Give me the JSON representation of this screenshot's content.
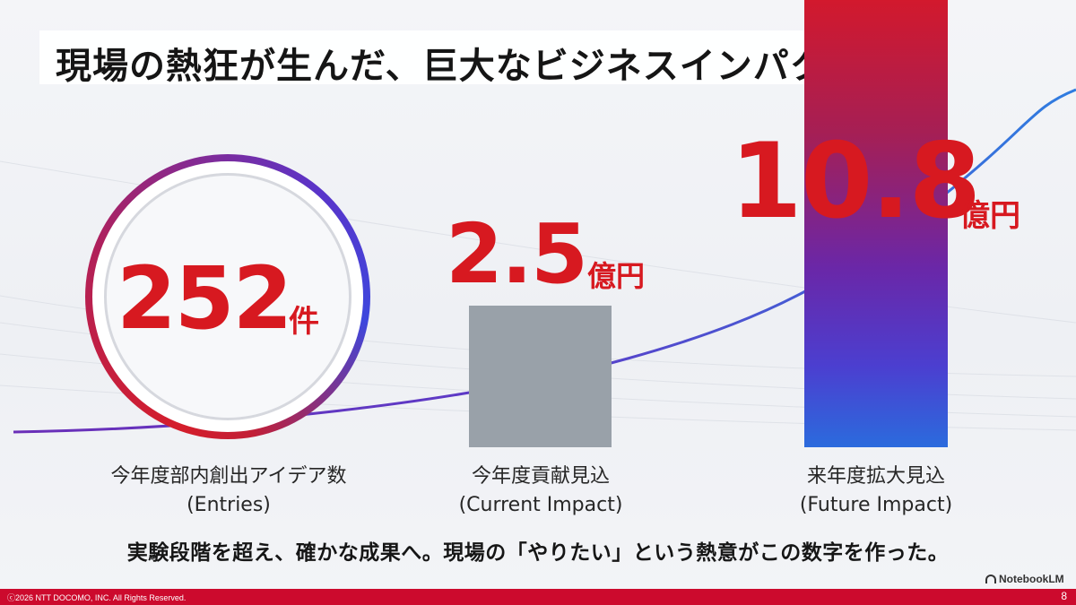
{
  "slide": {
    "title": "現場の熱狂が生んだ、巨大なビジネスインパクト",
    "message": "実験段階を超え、確かな成果へ。現場の「やりたい」という熱意がこの数字を作った。"
  },
  "metrics": {
    "entries": {
      "value": "252",
      "unit": "件",
      "label": "今年度部内創出アイデア数",
      "sublabel": "(Entries)"
    },
    "current": {
      "value": "2.5",
      "unit": "億円",
      "label": "今年度貢献見込",
      "sublabel": "(Current Impact)",
      "amount": 2.5
    },
    "future": {
      "value": "10.8",
      "unit": "億円",
      "label": "来年度拡大見込",
      "sublabel": "(Future Impact)",
      "amount": 10.8
    }
  },
  "colors": {
    "accent_red": "#d71920",
    "bar_gray": "#99a1a9",
    "gradient_top": "#d2192d",
    "gradient_bottom": "#2b6bdd",
    "footer": "#cc0a2d"
  },
  "brand": {
    "name": "NotebookLM",
    "icon": "notebooklm-icon"
  },
  "footer": {
    "copyright": "ⓒ2026 NTT DOCOMO, INC. All Rights Reserved.",
    "page": "8"
  }
}
